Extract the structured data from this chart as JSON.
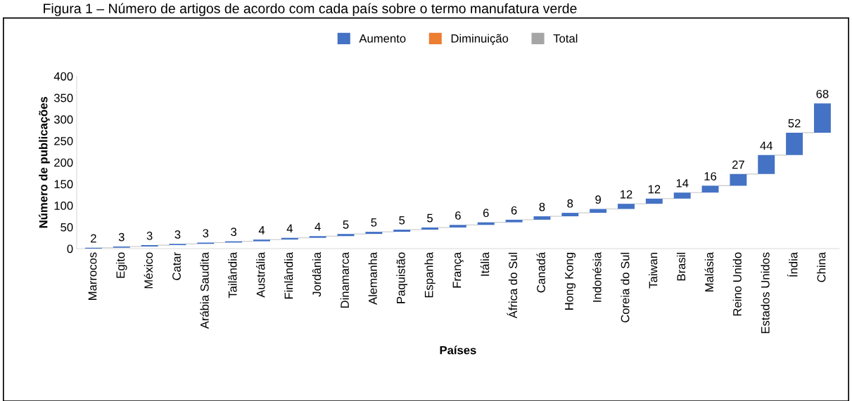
{
  "chart_data": {
    "type": "bar",
    "title": "Figura 1 – Número de artigos de acordo com cada país sobre o termo manufatura verde",
    "xlabel": "Países",
    "ylabel": "Número de publicações",
    "categories": [
      "Marrocos",
      "Egito",
      "México",
      "Catar",
      "Arábia Saudita",
      "Tailândia",
      "Austrália",
      "Finlândia",
      "Jordânia",
      "Dinamarca",
      "Alemanha",
      "Paquistão",
      "Espanha",
      "França",
      "Itália",
      "África do Sul",
      "Canadá",
      "Hong Kong",
      "Indonésia",
      "Coreia do Sul",
      "Taiwan",
      "Brasil",
      "Malásia",
      "Reino Unido",
      "Estados Unidos",
      "Índia",
      "China"
    ],
    "series": [
      {
        "name": "Aumento",
        "color": "#4472c4",
        "base": [
          0,
          2,
          5,
          8,
          11,
          14,
          17,
          21,
          25,
          29,
          34,
          39,
          44,
          49,
          55,
          61,
          67,
          75,
          83,
          92,
          104,
          116,
          130,
          146,
          173,
          217,
          269
        ],
        "values": [
          2,
          3,
          3,
          3,
          3,
          3,
          4,
          4,
          4,
          5,
          5,
          5,
          5,
          6,
          6,
          6,
          8,
          8,
          9,
          12,
          12,
          14,
          16,
          27,
          44,
          52,
          68
        ]
      },
      {
        "name": "Diminuição",
        "color": "#ed7d31",
        "values": [
          null,
          null,
          null,
          null,
          null,
          null,
          null,
          null,
          null,
          null,
          null,
          null,
          null,
          null,
          null,
          null,
          null,
          null,
          null,
          null,
          null,
          null,
          null,
          null,
          null,
          null,
          null
        ]
      },
      {
        "name": "Total",
        "color": "#a5a5a5",
        "values": [
          null,
          null,
          null,
          null,
          null,
          null,
          null,
          null,
          null,
          null,
          null,
          null,
          null,
          null,
          null,
          null,
          null,
          null,
          null,
          null,
          null,
          null,
          null,
          null,
          null,
          null,
          null
        ]
      }
    ],
    "ylim": [
      0,
      400
    ],
    "yticks": [
      0,
      50,
      100,
      150,
      200,
      250,
      300,
      350,
      400
    ],
    "data_labels": true,
    "legend": "top",
    "grid": false
  }
}
